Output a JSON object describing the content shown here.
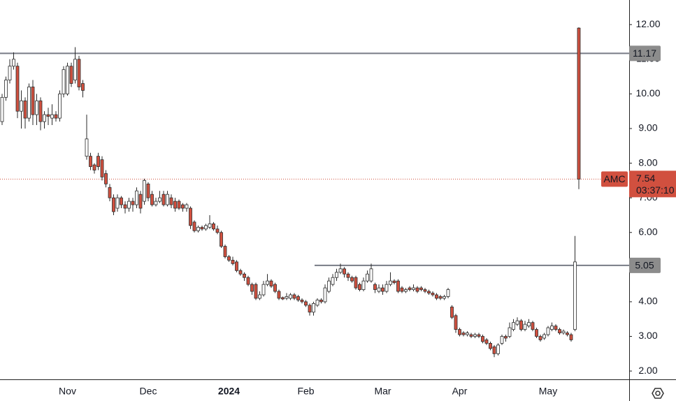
{
  "chart_data": {
    "type": "candlestick",
    "categories": [
      null,
      null,
      null,
      null,
      null,
      null,
      null,
      null,
      null,
      null,
      null,
      null,
      null,
      null,
      null,
      null,
      null,
      "Nov",
      null,
      null,
      null,
      null,
      null,
      null,
      null,
      null,
      null,
      null,
      null,
      null,
      null,
      null,
      null,
      null,
      null,
      null,
      null,
      null,
      "Dec",
      null,
      null,
      null,
      null,
      null,
      null,
      null,
      null,
      null,
      null,
      null,
      null,
      null,
      null,
      null,
      null,
      null,
      null,
      null,
      null,
      "2024",
      null,
      null,
      null,
      null,
      null,
      null,
      null,
      null,
      null,
      null,
      null,
      null,
      null,
      null,
      null,
      null,
      null,
      null,
      null,
      "Feb",
      null,
      null,
      null,
      null,
      null,
      null,
      null,
      null,
      null,
      null,
      null,
      null,
      null,
      null,
      null,
      null,
      null,
      null,
      null,
      "Mar",
      null,
      null,
      null,
      null,
      null,
      null,
      null,
      null,
      null,
      null,
      null,
      null,
      null,
      null,
      null,
      null,
      null,
      null,
      null,
      "Apr",
      null,
      null,
      null,
      null,
      null,
      null,
      null,
      null,
      null,
      null,
      null,
      null,
      null,
      null,
      null,
      null,
      null,
      null,
      null,
      null,
      null,
      null,
      "May",
      null,
      null,
      null,
      null,
      null,
      null,
      null,
      null
    ],
    "open": [
      9.2,
      9.9,
      10.4,
      10.8,
      10.8,
      9.5,
      9.8,
      9.3,
      10.2,
      9.4,
      9.8,
      9.2,
      9.4,
      9.3,
      9.4,
      9.3,
      10.0,
      10.0,
      10.8,
      10.4,
      11.0,
      10.3,
      8.2,
      8.2,
      7.95,
      8.2,
      8.1,
      7.7,
      7.3,
      7.0,
      6.7,
      7.0,
      6.8,
      6.7,
      6.9,
      6.8,
      7.1,
      6.9,
      7.4,
      7.1,
      6.8,
      6.9,
      7.1,
      6.8,
      7.0,
      6.9,
      6.9,
      6.8,
      6.7,
      6.7,
      6.3,
      6.05,
      6.15,
      6.1,
      6.15,
      6.25,
      6.1,
      6.0,
      5.6,
      5.3,
      5.2,
      5.15,
      4.9,
      4.8,
      4.7,
      4.5,
      4.5,
      4.1,
      4.2,
      4.5,
      4.6,
      4.5,
      4.3,
      4.12,
      4.1,
      4.1,
      4.2,
      4.15,
      4.05,
      4.0,
      3.9,
      3.7,
      3.9,
      4.05,
      4.0,
      4.3,
      4.5,
      4.7,
      4.85,
      4.95,
      4.8,
      4.7,
      4.7,
      4.5,
      4.35,
      4.6,
      4.6,
      4.5,
      4.3,
      4.4,
      4.3,
      4.5,
      4.6,
      4.6,
      4.4,
      4.3,
      4.4,
      4.35,
      4.4,
      4.4,
      4.35,
      4.3,
      4.25,
      4.2,
      4.15,
      4.1,
      4.15,
      3.85,
      3.6,
      3.2,
      3.1,
      3.05,
      3.05,
      3.0,
      3.05,
      3.0,
      2.9,
      2.8,
      2.7,
      2.5,
      2.8,
      3.0,
      3.0,
      3.2,
      3.35,
      3.45,
      3.2,
      3.3,
      3.4,
      3.2,
      3.0,
      2.95,
      3.05,
      3.2,
      3.3,
      3.2,
      3.1,
      3.1,
      3.05,
      3.2,
      11.9
    ],
    "high": [
      10.0,
      10.5,
      11.0,
      11.2,
      10.9,
      10.1,
      9.9,
      10.3,
      10.4,
      10.0,
      9.9,
      9.5,
      9.6,
      9.7,
      9.5,
      10.1,
      10.8,
      10.9,
      10.9,
      11.35,
      11.1,
      10.4,
      9.4,
      8.3,
      8.0,
      8.3,
      8.2,
      7.8,
      7.4,
      7.1,
      7.1,
      7.05,
      6.9,
      7.0,
      7.0,
      7.3,
      7.2,
      7.55,
      7.45,
      7.2,
      7.0,
      7.2,
      7.2,
      7.2,
      7.1,
      7.0,
      6.95,
      6.85,
      6.85,
      6.75,
      6.35,
      6.2,
      6.2,
      6.25,
      6.5,
      6.3,
      6.2,
      6.05,
      5.65,
      5.35,
      5.3,
      5.2,
      4.95,
      4.85,
      4.75,
      4.55,
      4.55,
      4.3,
      4.6,
      4.8,
      4.65,
      4.55,
      4.35,
      4.15,
      4.25,
      4.25,
      4.25,
      4.2,
      4.1,
      4.05,
      3.95,
      4.0,
      4.1,
      4.1,
      4.5,
      4.7,
      4.8,
      4.95,
      5.1,
      5.0,
      4.85,
      4.75,
      4.75,
      4.55,
      4.7,
      4.9,
      5.1,
      4.55,
      4.5,
      4.5,
      4.6,
      4.85,
      4.65,
      4.65,
      4.45,
      4.4,
      4.45,
      4.5,
      4.45,
      4.45,
      4.4,
      4.35,
      4.3,
      4.25,
      4.2,
      4.2,
      4.4,
      3.9,
      3.65,
      3.25,
      3.15,
      3.15,
      3.1,
      3.1,
      3.1,
      3.05,
      2.95,
      2.85,
      2.75,
      2.8,
      3.05,
      3.05,
      3.4,
      3.5,
      3.55,
      3.5,
      3.45,
      3.5,
      3.45,
      3.25,
      3.05,
      3.1,
      3.3,
      3.4,
      3.35,
      3.25,
      3.2,
      3.15,
      3.1,
      5.9,
      11.92
    ],
    "low": [
      9.1,
      9.8,
      10.3,
      10.7,
      9.3,
      9.0,
      9.0,
      9.2,
      9.1,
      9.1,
      8.95,
      9.0,
      9.1,
      9.1,
      9.2,
      9.2,
      9.9,
      9.95,
      10.2,
      10.3,
      10.1,
      9.9,
      8.1,
      7.8,
      7.7,
      7.8,
      7.5,
      7.3,
      6.9,
      6.5,
      6.6,
      6.7,
      6.55,
      6.6,
      6.6,
      6.7,
      6.55,
      6.8,
      6.9,
      6.75,
      6.75,
      6.85,
      6.75,
      6.75,
      6.7,
      6.6,
      6.65,
      6.6,
      6.6,
      6.1,
      6.0,
      6.0,
      6.05,
      6.05,
      6.1,
      6.05,
      5.95,
      5.55,
      5.25,
      5.15,
      5.05,
      4.85,
      4.75,
      4.6,
      4.45,
      4.2,
      4.05,
      4.05,
      4.15,
      4.45,
      4.4,
      4.25,
      4.05,
      4.05,
      4.05,
      4.05,
      4.05,
      4.0,
      3.95,
      3.85,
      3.6,
      3.6,
      3.85,
      3.95,
      3.95,
      4.25,
      4.45,
      4.6,
      4.8,
      4.7,
      4.6,
      4.55,
      4.35,
      4.3,
      4.3,
      4.55,
      4.55,
      4.25,
      4.25,
      4.2,
      4.25,
      4.45,
      4.5,
      4.25,
      4.25,
      4.25,
      4.3,
      4.3,
      4.25,
      4.3,
      4.25,
      4.2,
      4.15,
      4.05,
      4.05,
      4.05,
      4.1,
      3.5,
      3.1,
      3.0,
      3.0,
      3.0,
      2.95,
      2.95,
      2.95,
      2.8,
      2.75,
      2.6,
      2.4,
      2.45,
      2.75,
      2.85,
      2.95,
      3.15,
      3.3,
      3.15,
      3.15,
      3.25,
      3.15,
      2.95,
      2.85,
      2.9,
      3.0,
      3.15,
      3.15,
      3.05,
      3.05,
      3.0,
      2.85,
      3.15,
      7.25
    ],
    "close": [
      9.9,
      10.4,
      10.8,
      11.0,
      9.5,
      9.8,
      9.3,
      10.2,
      9.4,
      9.8,
      9.2,
      9.4,
      9.35,
      9.4,
      9.3,
      10.0,
      10.7,
      10.8,
      10.3,
      11.0,
      10.2,
      10.1,
      8.7,
      7.9,
      7.8,
      7.9,
      7.6,
      7.4,
      7.0,
      6.6,
      7.0,
      6.8,
      6.7,
      6.9,
      6.8,
      7.2,
      6.7,
      7.5,
      7.0,
      6.8,
      6.9,
      7.0,
      6.8,
      7.1,
      6.8,
      6.7,
      6.7,
      6.7,
      6.8,
      6.2,
      6.05,
      6.15,
      6.1,
      6.2,
      6.25,
      6.1,
      6.0,
      5.6,
      5.3,
      5.2,
      5.1,
      4.9,
      4.8,
      4.7,
      4.5,
      4.3,
      4.1,
      4.2,
      4.5,
      4.6,
      4.45,
      4.3,
      4.1,
      4.08,
      4.15,
      4.2,
      4.1,
      4.05,
      4.0,
      3.9,
      3.7,
      3.95,
      4.05,
      4.0,
      4.4,
      4.6,
      4.7,
      4.85,
      4.95,
      4.8,
      4.7,
      4.6,
      4.4,
      4.35,
      4.6,
      4.8,
      4.95,
      4.35,
      4.4,
      4.3,
      4.5,
      4.6,
      4.55,
      4.3,
      4.3,
      4.35,
      4.35,
      4.4,
      4.3,
      4.35,
      4.3,
      4.25,
      4.2,
      4.1,
      4.1,
      4.15,
      4.35,
      3.55,
      3.2,
      3.05,
      3.05,
      3.1,
      3.0,
      3.05,
      3.0,
      2.85,
      2.8,
      2.65,
      2.5,
      2.75,
      3.0,
      2.95,
      3.25,
      3.4,
      3.45,
      3.2,
      3.35,
      3.4,
      3.2,
      3.0,
      2.9,
      3.05,
      3.25,
      3.3,
      3.2,
      3.1,
      3.15,
      3.05,
      2.9,
      5.15,
      7.54
    ],
    "up_color": "#ffffff",
    "down_color": "#d1503f",
    "border_color": "#2b2b2b",
    "ylim": [
      1.76,
      12.71
    ],
    "yticks": [
      {
        "value": 2,
        "label": "2.00"
      },
      {
        "value": 3,
        "label": "3.00"
      },
      {
        "value": 4,
        "label": "4.00"
      },
      {
        "value": 5,
        "label": "5.00"
      },
      {
        "value": 6,
        "label": "6.00"
      },
      {
        "value": 7,
        "label": "7.00"
      },
      {
        "value": 8,
        "label": "8.00"
      },
      {
        "value": 9,
        "label": "9.00"
      },
      {
        "value": 10,
        "label": "10.00"
      },
      {
        "value": 11,
        "label": "11.00"
      },
      {
        "value": 12,
        "label": "12.00"
      }
    ],
    "hlines": [
      11.17,
      5.05
    ],
    "last_price": {
      "symbol": "AMC",
      "value": 7.54,
      "countdown": "03:37:10"
    }
  }
}
